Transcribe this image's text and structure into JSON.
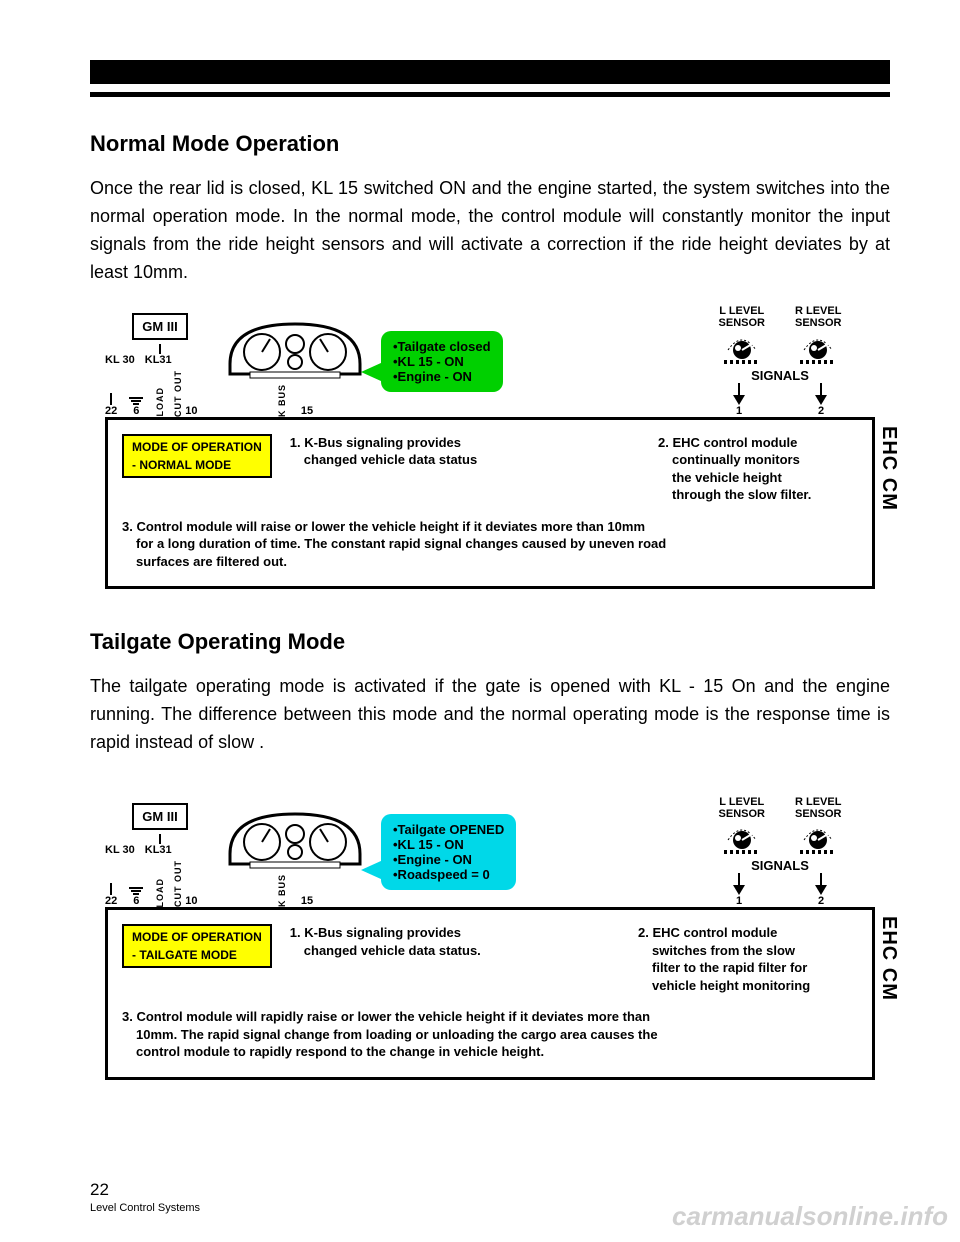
{
  "section1": {
    "title": "Normal Mode Operation",
    "body": "Once the rear lid is closed, KL 15  switched ON and the engine started, the system switches into the normal operation mode. In the normal mode, the control module will constantly monitor the input signals from the ride height sensors and will activate a correction if the ride height deviates by at least 10mm."
  },
  "section2": {
    "title": "Tailgate Operating Mode",
    "body": "The tailgate operating mode is activated if the gate is opened with KL - 15 On and the engine running. The difference between this mode and the normal operating mode is the response time is rapid instead of slow ."
  },
  "diagram_common": {
    "gm_label": "GM III",
    "kl30": "KL 30",
    "kl31": "KL31",
    "pin22": "22",
    "pin6": "6",
    "pin10": "10",
    "pin15": "15",
    "load": "LOAD",
    "cutout": "CUT OUT",
    "kbus": "K BUS",
    "l_sensor": "L LEVEL\nSENSOR",
    "r_sensor": "R LEVEL\nSENSOR",
    "signals": "SIGNALS",
    "sig1": "1",
    "sig2": "2",
    "mode_header": "MODE OF OPERATION",
    "ehc_side": "EHC CM",
    "item1_lead": "1. K-Bus signaling provides",
    "item1_sub": "changed vehicle data status",
    "item1_sub_b": "changed vehicle data status."
  },
  "diagram1": {
    "callout_bg": "#00d000",
    "callout_lines": [
      "•Tailgate closed",
      "•KL 15 - ON",
      "•Engine  - ON"
    ],
    "mode_tag_bg": "#ffff00",
    "mode_line": "- NORMAL MODE",
    "item2_lead": "2. EHC control module",
    "item2_sub1": "continually  monitors",
    "item2_sub2": "the vehicle height",
    "item2_sub3": "through the slow filter.",
    "item3_lead": "3. Control module will raise or lower the vehicle height if it deviates more than 10mm",
    "item3_sub1": "for a long duration of time.  The constant rapid signal changes caused by uneven road",
    "item3_sub2": "surfaces are filtered out."
  },
  "diagram2": {
    "callout_bg": "#00d8e8",
    "callout_lines": [
      "•Tailgate OPENED",
      "•KL 15 - ON",
      "•Engine  - ON",
      "•Roadspeed = 0"
    ],
    "mode_tag_bg": "#ffff00",
    "mode_line": "- TAILGATE  MODE",
    "item2_lead": "2. EHC control module",
    "item2_sub1": "switches from the slow",
    "item2_sub2": "filter to the rapid filter for",
    "item2_sub3": "vehicle height monitoring",
    "item3_lead": "3. Control module will rapidly raise or lower the vehicle height if it deviates more than",
    "item3_sub1": "10mm.   The rapid signal change from loading or unloading the cargo area causes the",
    "item3_sub2": "control module to rapidly respond to the change in vehicle height."
  },
  "footer": {
    "page": "22",
    "title": "Level Control Systems"
  },
  "watermark": "carmanualsonline.info"
}
